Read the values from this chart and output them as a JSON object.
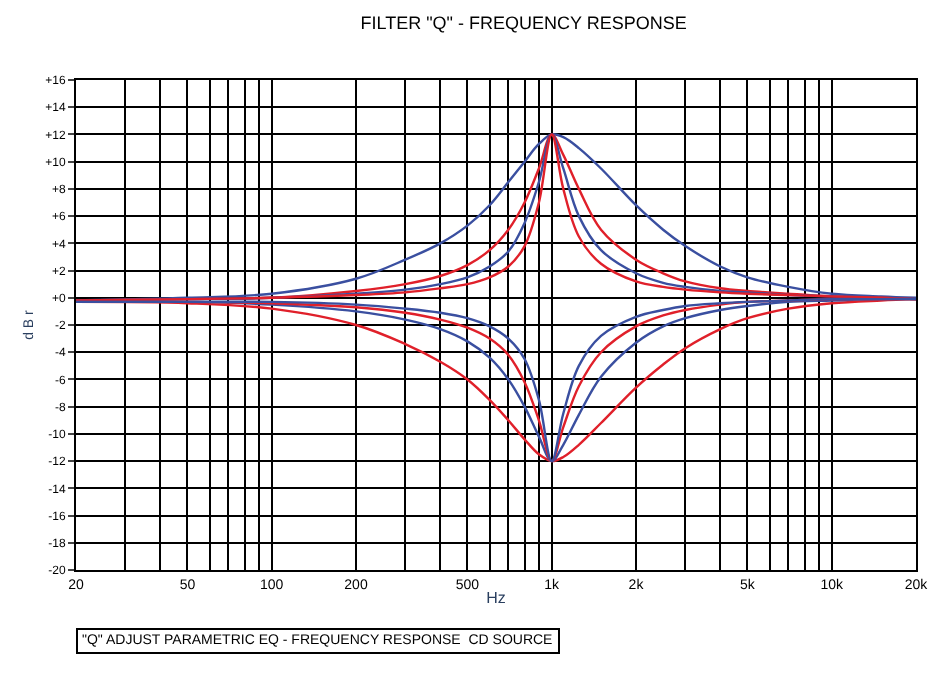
{
  "chart_data": {
    "type": "line",
    "title": "FILTER \"Q\" - FREQUENCY RESPONSE",
    "xlabel": "Hz",
    "ylabel": "d B r",
    "annotations": [
      "\"Q\" ADJUST PARAMETRIC EQ - FREQUENCY RESPONSE  CD SOURCE"
    ],
    "log": "x",
    "grid": true,
    "marker": "none",
    "line_style": "solid",
    "x": [
      20,
      50,
      100,
      200,
      300,
      400,
      500,
      600,
      700,
      800,
      900,
      1000,
      1100,
      1250,
      1500,
      2000,
      2500,
      3000,
      4000,
      5000,
      7000,
      10000,
      15000,
      20000
    ],
    "series": [
      {
        "color": "#3a4fa0",
        "values": [
          -0.2,
          0,
          0.3,
          1.4,
          2.8,
          4,
          5.3,
          6.8,
          8.5,
          10,
          11.3,
          12,
          11.8,
          11,
          9.5,
          6.8,
          5,
          3.8,
          2.3,
          1.5,
          0.8,
          0.3,
          0.1,
          0
        ]
      },
      {
        "color": "#e0202a",
        "values": [
          -0.2,
          -0.1,
          0,
          0.5,
          1,
          1.6,
          2.4,
          3.5,
          5,
          7,
          9.5,
          12,
          10.5,
          8,
          5,
          2.8,
          1.8,
          1.2,
          0.7,
          0.5,
          0.3,
          0.1,
          0,
          -0.1
        ]
      },
      {
        "color": "#3a4fa0",
        "values": [
          -0.2,
          -0.1,
          0,
          0.3,
          0.6,
          1,
          1.5,
          2.3,
          3.4,
          5.5,
          8.5,
          12,
          9.5,
          6,
          3.5,
          1.8,
          1.1,
          0.8,
          0.5,
          0.4,
          0.2,
          0.1,
          0,
          -0.1
        ]
      },
      {
        "color": "#e0202a",
        "values": [
          -0.2,
          -0.1,
          0,
          0.2,
          0.4,
          0.7,
          1,
          1.5,
          2.3,
          3.8,
          7,
          12,
          8,
          4.5,
          2.5,
          1.2,
          0.8,
          0.6,
          0.4,
          0.3,
          0.2,
          0.1,
          0,
          -0.1
        ]
      },
      {
        "color": "#e0202a",
        "values": [
          -0.3,
          -0.4,
          -0.8,
          -2,
          -3.4,
          -4.7,
          -6,
          -7.5,
          -9,
          -10.4,
          -11.5,
          -12,
          -11.7,
          -10.8,
          -9.2,
          -6.6,
          -4.9,
          -3.7,
          -2.3,
          -1.5,
          -0.8,
          -0.4,
          -0.2,
          -0.1
        ]
      },
      {
        "color": "#3a4fa0",
        "values": [
          -0.3,
          -0.3,
          -0.5,
          -1,
          -1.6,
          -2.3,
          -3.2,
          -4.4,
          -6,
          -8,
          -10.2,
          -12,
          -10.8,
          -8.6,
          -5.8,
          -3.3,
          -2.1,
          -1.5,
          -0.9,
          -0.6,
          -0.3,
          -0.2,
          -0.1,
          -0.1
        ]
      },
      {
        "color": "#e0202a",
        "values": [
          -0.3,
          -0.3,
          -0.4,
          -0.7,
          -1.1,
          -1.6,
          -2.2,
          -3,
          -4.2,
          -6.2,
          -9,
          -12,
          -9.5,
          -6.5,
          -4,
          -2.1,
          -1.3,
          -0.9,
          -0.5,
          -0.3,
          -0.2,
          -0.1,
          -0.1,
          -0.1
        ]
      },
      {
        "color": "#3a4fa0",
        "values": [
          -0.3,
          -0.3,
          -0.3,
          -0.5,
          -0.8,
          -1.1,
          -1.5,
          -2.1,
          -3,
          -4.5,
          -7.5,
          -12,
          -8.5,
          -5,
          -2.8,
          -1.4,
          -0.9,
          -0.6,
          -0.4,
          -0.3,
          -0.2,
          -0.1,
          -0.1,
          -0.1
        ]
      }
    ],
    "xlim": [
      20,
      20000
    ],
    "xticks": [
      20,
      {
        "value": 30,
        "label": null
      },
      {
        "value": 40,
        "label": null
      },
      50,
      {
        "value": 60,
        "label": null
      },
      {
        "value": 70,
        "label": null
      },
      {
        "value": 80,
        "label": null
      },
      {
        "value": 90,
        "label": null
      },
      100,
      200,
      {
        "value": 300,
        "label": null
      },
      {
        "value": 400,
        "label": null
      },
      500,
      {
        "value": 600,
        "label": null
      },
      {
        "value": 700,
        "label": null
      },
      {
        "value": 800,
        "label": null
      },
      {
        "value": 900,
        "label": null
      },
      {
        "value": 1000,
        "label": "1k"
      },
      {
        "value": 2000,
        "label": "2k"
      },
      {
        "value": 3000,
        "label": null
      },
      {
        "value": 4000,
        "label": null
      },
      {
        "value": 5000,
        "label": "5k"
      },
      {
        "value": 6000,
        "label": null
      },
      {
        "value": 7000,
        "label": null
      },
      {
        "value": 8000,
        "label": null
      },
      {
        "value": 9000,
        "label": null
      },
      {
        "value": 10000,
        "label": "10k"
      },
      {
        "value": 20000,
        "label": "20k"
      }
    ],
    "ylim": [
      -20,
      16
    ],
    "yticks": [
      {
        "value": 16,
        "label": "+16"
      },
      {
        "value": 14,
        "label": "+14"
      },
      {
        "value": 12,
        "label": "+12"
      },
      {
        "value": 10,
        "label": "+10"
      },
      {
        "value": 8,
        "label": "+8"
      },
      {
        "value": 6,
        "label": "+6"
      },
      {
        "value": 4,
        "label": "+4"
      },
      {
        "value": 2,
        "label": "+2"
      },
      {
        "value": 0,
        "label": "+0"
      },
      -2,
      -4,
      -6,
      -8,
      -10,
      -12,
      -14,
      -16,
      -18,
      -20
    ]
  }
}
